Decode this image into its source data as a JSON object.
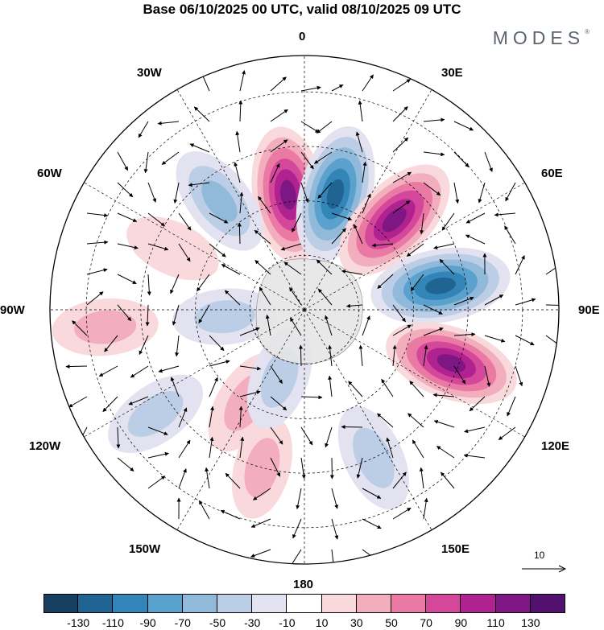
{
  "title": "Base 06/10/2025 00 UTC, valid 08/10/2025 09 UTC",
  "brand": "MODES",
  "brand_mark": "®",
  "longitude_labels": {
    "0": "0",
    "30E": "30E",
    "60E": "60E",
    "90E": "90E",
    "120E": "120E",
    "150E": "150E",
    "180": "180",
    "150W": "150W",
    "120W": "120W",
    "90W": "90W",
    "60W": "60W",
    "30W": "30W"
  },
  "reference_vector": {
    "label": "10"
  },
  "colorbar": {
    "colors": [
      "#173f5f",
      "#1f6492",
      "#3385b8",
      "#5aa2cd",
      "#91b9d9",
      "#bccde6",
      "#e3e2f0",
      "#ffffff",
      "#f9d9dc",
      "#f3aebe",
      "#ea7aa4",
      "#d4479b",
      "#b0228f",
      "#7e1784",
      "#52106f"
    ],
    "tick_labels": [
      "-130",
      "-110",
      "-90",
      "-70",
      "-50",
      "-30",
      "-10",
      "10",
      "30",
      "50",
      "70",
      "90",
      "110",
      "130"
    ]
  },
  "anomaly_features": [
    {
      "sign": "positive",
      "value": 120,
      "lon": -8,
      "lat": -58
    },
    {
      "sign": "negative",
      "value": -125,
      "lon": 15,
      "lat": -57
    },
    {
      "sign": "positive",
      "value": 125,
      "lon": 45,
      "lat": -55
    },
    {
      "sign": "negative",
      "value": -130,
      "lon": 80,
      "lat": -52
    },
    {
      "sign": "positive",
      "value": 120,
      "lon": 110,
      "lat": -47
    },
    {
      "sign": "negative",
      "value": -55,
      "lon": 155,
      "lat": -45
    },
    {
      "sign": "positive",
      "value": 40,
      "lon": -165,
      "lat": -45
    },
    {
      "sign": "positive",
      "value": 55,
      "lon": -148,
      "lat": -60
    },
    {
      "sign": "negative",
      "value": -45,
      "lon": -160,
      "lat": -70
    },
    {
      "sign": "negative",
      "value": -50,
      "lon": -125,
      "lat": -40
    },
    {
      "sign": "positive",
      "value": 45,
      "lon": -95,
      "lat": -35
    },
    {
      "sign": "negative",
      "value": -70,
      "lon": -38,
      "lat": -52
    },
    {
      "sign": "negative",
      "value": -40,
      "lon": -95,
      "lat": -68
    },
    {
      "sign": "positive",
      "value": 25,
      "lon": -65,
      "lat": -50
    }
  ]
}
